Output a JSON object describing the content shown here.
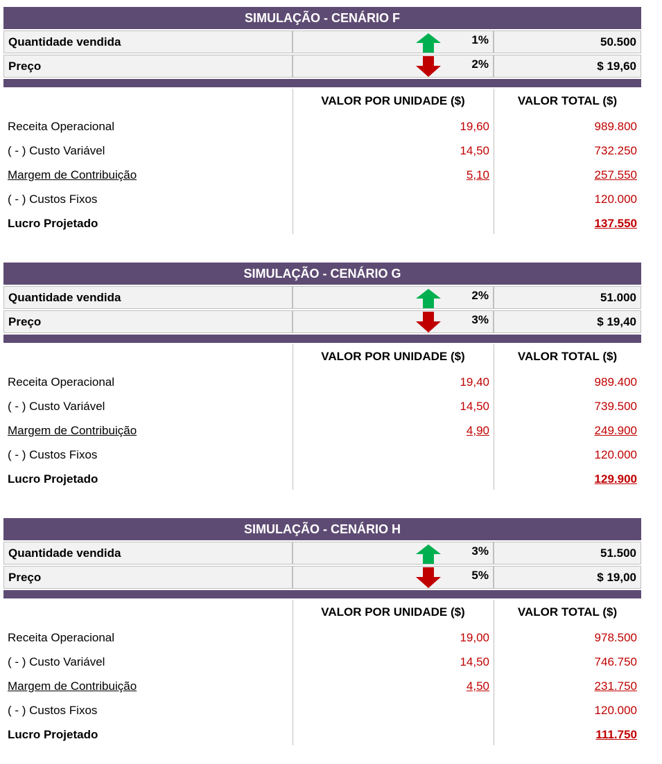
{
  "scenarios": [
    {
      "title": "SIMULAÇÃO - CENÁRIO F",
      "inputs": [
        {
          "label": "Quantidade vendida",
          "arrow": "up",
          "change": "1%",
          "value": "50.500"
        },
        {
          "label": "Preço",
          "arrow": "down",
          "change": "2%",
          "value": "$ 19,60"
        }
      ],
      "headers": [
        "VALOR POR UNIDADE ($)",
        "VALOR TOTAL ($)"
      ],
      "lines": [
        {
          "label": "Receita Operacional",
          "unit": "19,60",
          "total": "989.800"
        },
        {
          "label": "( - ) Custo Variável",
          "unit": "14,50",
          "total": "732.250"
        },
        {
          "label": "Margem de Contribuição",
          "unit": "5,10",
          "total": "257.550"
        },
        {
          "label": "( - ) Custos Fixos",
          "total": "120.000"
        },
        {
          "label": "Lucro Projetado",
          "total": "137.550"
        }
      ]
    },
    {
      "title": "SIMULAÇÃO - CENÁRIO G",
      "inputs": [
        {
          "label": "Quantidade vendida",
          "arrow": "up",
          "change": "2%",
          "value": "51.000"
        },
        {
          "label": "Preço",
          "arrow": "down",
          "change": "3%",
          "value": "$ 19,40"
        }
      ],
      "headers": [
        "VALOR POR UNIDADE ($)",
        "VALOR TOTAL ($)"
      ],
      "lines": [
        {
          "label": "Receita Operacional",
          "unit": "19,40",
          "total": "989.400"
        },
        {
          "label": "( - ) Custo Variável",
          "unit": "14,50",
          "total": "739.500"
        },
        {
          "label": "Margem de Contribuição",
          "unit": "4,90",
          "total": "249.900"
        },
        {
          "label": "( - ) Custos Fixos",
          "total": "120.000"
        },
        {
          "label": "Lucro Projetado",
          "total": "129.900"
        }
      ]
    },
    {
      "title": "SIMULAÇÃO - CENÁRIO H",
      "inputs": [
        {
          "label": "Quantidade vendida",
          "arrow": "up",
          "change": "3%",
          "value": "51.500"
        },
        {
          "label": "Preço",
          "arrow": "down",
          "change": "5%",
          "value": "$ 19,00"
        }
      ],
      "headers": [
        "VALOR POR UNIDADE ($)",
        "VALOR TOTAL ($)"
      ],
      "lines": [
        {
          "label": "Receita Operacional",
          "unit": "19,00",
          "total": "978.500"
        },
        {
          "label": "( - ) Custo Variável",
          "unit": "14,50",
          "total": "746.750"
        },
        {
          "label": "Margem de Contribuição",
          "unit": "4,50",
          "total": "231.750"
        },
        {
          "label": "( - ) Custos Fixos",
          "total": "120.000"
        },
        {
          "label": "Lucro Projetado",
          "total": "111.750"
        }
      ]
    }
  ]
}
